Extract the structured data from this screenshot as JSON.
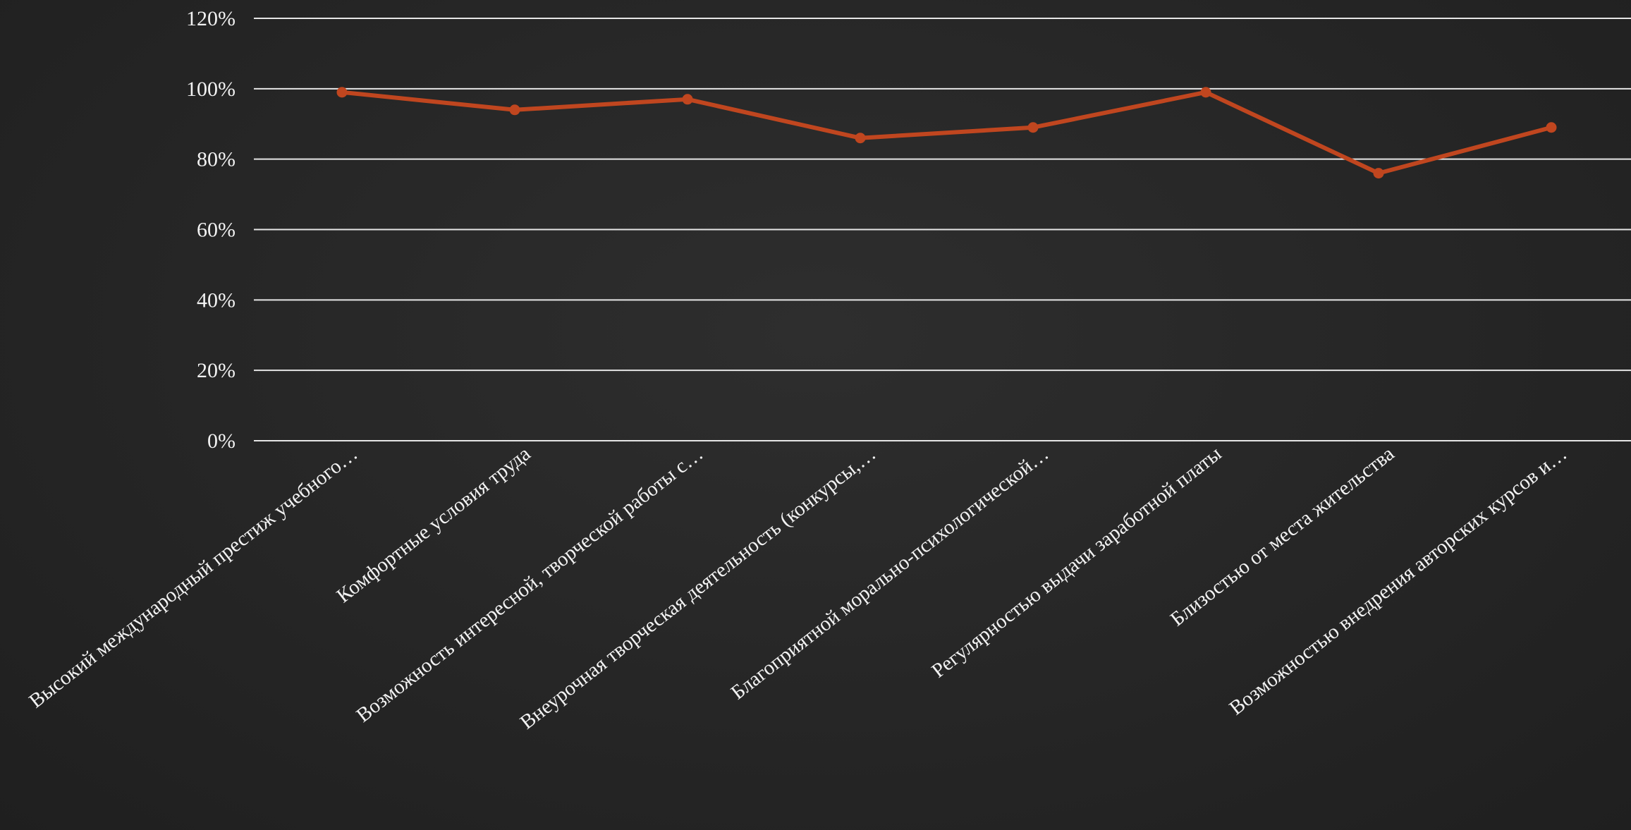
{
  "chart_data": {
    "type": "line",
    "categories": [
      "Высокий международный престиж учебного…",
      "Комфортные условия труда",
      "Возможность интересной, творческой работы с…",
      "Внеурочная творческая деятельность (конкурсы,…",
      "Благоприятной морально-психологической…",
      "Регулярностью выдачи заработной платы",
      "Близостью от места жительства",
      "Возможностью внедрения авторских курсов и…"
    ],
    "series": [
      {
        "values": [
          99,
          94,
          97,
          86,
          89,
          99,
          76,
          89
        ],
        "color": "#c0461f"
      }
    ],
    "ylim": [
      0,
      120
    ],
    "y_ticks": [
      "0%",
      "20%",
      "40%",
      "60%",
      "80%",
      "100%",
      "120%"
    ],
    "y_tick_values": [
      0,
      20,
      40,
      60,
      80,
      100,
      120
    ],
    "grid": true,
    "legend": "none",
    "title": "",
    "xlabel": "",
    "ylabel": "",
    "colors": {
      "background": "#262626",
      "grid": "#e6e6e6",
      "text": "#f2f2f2"
    }
  }
}
